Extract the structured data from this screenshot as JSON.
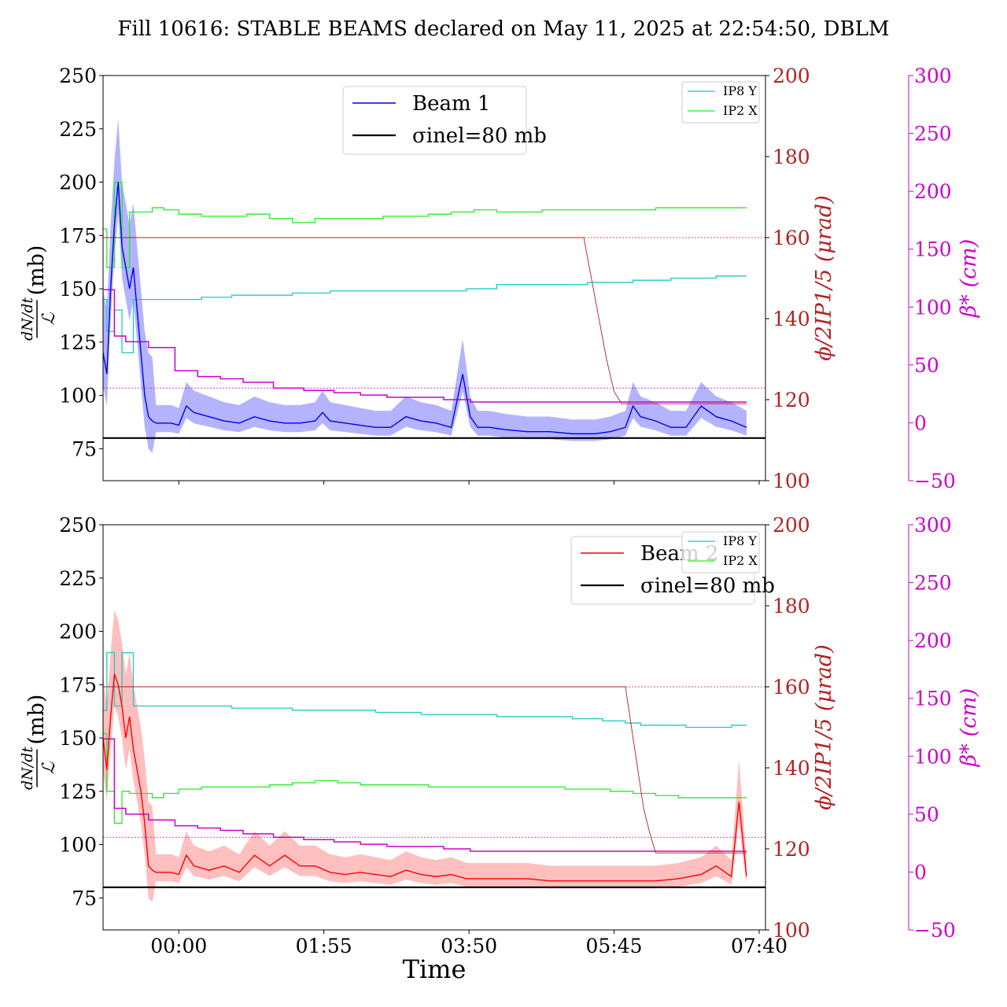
{
  "title": "Fill 10616: STABLE BEAMS declared on May 11, 2025 at 22:54:50, DBLM",
  "xlabel": "Time",
  "colors": {
    "beam1": "#0000ee",
    "beam1_band": "#9a9aff",
    "beam2": "#ff0000",
    "beam2_band": "#ffaaaa",
    "sigma": "#000000",
    "ip8y": "#1ec8c8",
    "ip2x": "#22ee22",
    "phi": "#b22222",
    "beta": "#cc00cc"
  },
  "chart_data": [
    {
      "type": "line",
      "panel": "top",
      "ylabel": "dN/dt / L (mb)",
      "ylabel_unit": "(mb)",
      "ylim": [
        60,
        250
      ],
      "yticks": [
        75,
        100,
        125,
        150,
        175,
        200,
        225,
        250
      ],
      "y2label": "ϕ/2IP1/5 (μrad)",
      "y2lim": [
        100,
        200
      ],
      "y2ticks": [
        100,
        120,
        140,
        160,
        180,
        200
      ],
      "y3label": "β* (cm)",
      "y3lim": [
        -50,
        300
      ],
      "y3ticks": [
        -50,
        0,
        50,
        100,
        150,
        200,
        250,
        300
      ],
      "xlim": [
        -1.0,
        7.75
      ],
      "xticks": [
        {
          "x": 0,
          "label": "00:00"
        },
        {
          "x": 1.9167,
          "label": "01:55"
        },
        {
          "x": 3.8333,
          "label": "03:50"
        },
        {
          "x": 5.75,
          "label": "05:45"
        },
        {
          "x": 7.6667,
          "label": "07:40"
        }
      ],
      "legend_main": [
        "Beam 1",
        "σinel=80 mb"
      ],
      "legend_small": [
        "IP8 Y",
        "IP2 X"
      ],
      "sigma_inel": 80,
      "series": [
        {
          "name": "Beam 1",
          "axis": "y",
          "x": [
            -1.07,
            -1.0,
            -0.95,
            -0.9,
            -0.85,
            -0.8,
            -0.75,
            -0.7,
            -0.65,
            -0.6,
            -0.55,
            -0.5,
            -0.45,
            -0.4,
            -0.35,
            -0.3,
            -0.25,
            -0.2,
            -0.1,
            0.0,
            0.1,
            0.2,
            0.4,
            0.6,
            0.8,
            1.0,
            1.2,
            1.4,
            1.6,
            1.8,
            1.9,
            2.0,
            2.2,
            2.4,
            2.6,
            2.8,
            3.0,
            3.2,
            3.4,
            3.6,
            3.75,
            3.85,
            3.95,
            4.1,
            4.3,
            4.6,
            4.9,
            5.2,
            5.5,
            5.7,
            5.9,
            6.0,
            6.1,
            6.3,
            6.5,
            6.7,
            6.9,
            7.1,
            7.3,
            7.5
          ],
          "values": [
            150,
            120,
            110,
            150,
            180,
            200,
            170,
            160,
            150,
            160,
            140,
            120,
            100,
            90,
            88,
            87,
            87,
            87,
            87,
            86,
            95,
            92,
            90,
            88,
            87,
            90,
            88,
            87,
            87,
            88,
            92,
            88,
            87,
            86,
            85,
            85,
            90,
            88,
            87,
            85,
            110,
            90,
            85,
            85,
            84,
            83,
            83,
            82,
            82,
            83,
            85,
            95,
            90,
            88,
            85,
            85,
            95,
            90,
            88,
            85
          ]
        },
        {
          "name": "IP8 Y",
          "axis": "y",
          "x": [
            -1.07,
            -0.95,
            -0.85,
            -0.75,
            -0.6,
            -0.4,
            -0.1,
            0.3,
            0.7,
            1.0,
            1.5,
            2.0,
            2.6,
            3.2,
            3.8,
            4.2,
            4.8,
            5.4,
            6.0,
            6.5,
            7.0,
            7.1,
            7.5
          ],
          "values": [
            145,
            130,
            140,
            120,
            145,
            145,
            145,
            146,
            147,
            147,
            148,
            149,
            149,
            149,
            150,
            152,
            152,
            153,
            154,
            155,
            155,
            156,
            156
          ]
        },
        {
          "name": "IP2 X",
          "axis": "y",
          "x": [
            -1.07,
            -0.95,
            -0.85,
            -0.75,
            -0.65,
            -0.5,
            -0.35,
            -0.2,
            0.0,
            0.3,
            0.6,
            0.9,
            1.2,
            1.5,
            1.8,
            2.1,
            2.4,
            2.7,
            3.0,
            3.3,
            3.6,
            3.9,
            4.2,
            4.5,
            4.8,
            5.1,
            5.4,
            5.7,
            6.0,
            6.3,
            6.6,
            6.9,
            7.2,
            7.5
          ],
          "values": [
            178,
            160,
            200,
            160,
            186,
            186,
            188,
            187,
            185,
            184,
            184,
            185,
            183,
            181,
            183,
            183,
            183,
            184,
            184,
            185,
            186,
            187,
            186,
            186,
            187,
            187,
            187,
            187,
            187,
            188,
            188,
            188,
            188,
            188
          ]
        },
        {
          "name": "ϕ/2",
          "axis": "y2",
          "x": [
            -1.07,
            5.35,
            5.45,
            5.55,
            5.65,
            5.75,
            5.85,
            7.5
          ],
          "values": [
            160,
            160,
            150,
            140,
            130,
            122,
            119,
            119
          ]
        },
        {
          "name": "β*",
          "axis": "y3",
          "x": [
            -1.07,
            -0.85,
            -0.7,
            -0.4,
            -0.05,
            0.25,
            0.55,
            0.85,
            1.25,
            1.65,
            2.05,
            2.4,
            2.75,
            3.15,
            3.5,
            3.85,
            4.2,
            4.6,
            5.0,
            5.5,
            6.0,
            6.5,
            7.0,
            7.5
          ],
          "values": [
            115,
            75,
            70,
            65,
            45,
            40,
            38,
            35,
            30,
            28,
            26,
            24,
            22,
            22,
            20,
            18,
            18,
            18,
            18,
            18,
            18,
            18,
            18,
            18
          ]
        }
      ]
    },
    {
      "type": "line",
      "panel": "bottom",
      "ylabel": "dN/dt / L (mb)",
      "ylabel_unit": "(mb)",
      "ylim": [
        60,
        250
      ],
      "yticks": [
        75,
        100,
        125,
        150,
        175,
        200,
        225,
        250
      ],
      "y2label": "ϕ/2IP1/5 (μrad)",
      "y2lim": [
        100,
        200
      ],
      "y2ticks": [
        100,
        120,
        140,
        160,
        180,
        200
      ],
      "y3label": "β* (cm)",
      "y3lim": [
        -50,
        300
      ],
      "y3ticks": [
        -50,
        0,
        50,
        100,
        150,
        200,
        250,
        300
      ],
      "xlim": [
        -1.0,
        7.75
      ],
      "xticks": [
        {
          "x": 0,
          "label": "00:00"
        },
        {
          "x": 1.9167,
          "label": "01:55"
        },
        {
          "x": 3.8333,
          "label": "03:50"
        },
        {
          "x": 5.75,
          "label": "05:45"
        },
        {
          "x": 7.6667,
          "label": "07:40"
        }
      ],
      "legend_main": [
        "Beam 2",
        "σinel=80 mb"
      ],
      "legend_small": [
        "IP8 Y",
        "IP2 X"
      ],
      "sigma_inel": 80,
      "series": [
        {
          "name": "Beam 2",
          "axis": "y",
          "x": [
            -1.07,
            -1.0,
            -0.95,
            -0.9,
            -0.85,
            -0.8,
            -0.75,
            -0.7,
            -0.65,
            -0.6,
            -0.55,
            -0.5,
            -0.45,
            -0.4,
            -0.35,
            -0.3,
            -0.25,
            -0.1,
            0.0,
            0.1,
            0.2,
            0.4,
            0.6,
            0.8,
            1.0,
            1.2,
            1.4,
            1.6,
            1.8,
            2.0,
            2.2,
            2.4,
            2.6,
            2.8,
            3.0,
            3.2,
            3.4,
            3.6,
            3.8,
            4.0,
            4.3,
            4.6,
            4.9,
            5.2,
            5.5,
            5.8,
            6.0,
            6.3,
            6.6,
            6.9,
            7.1,
            7.3,
            7.4,
            7.5
          ],
          "values": [
            115,
            150,
            135,
            160,
            180,
            175,
            165,
            150,
            160,
            145,
            135,
            125,
            110,
            90,
            88,
            87,
            87,
            87,
            86,
            95,
            90,
            88,
            90,
            87,
            95,
            90,
            95,
            90,
            90,
            87,
            86,
            87,
            86,
            85,
            88,
            86,
            85,
            86,
            84,
            84,
            84,
            84,
            83,
            83,
            83,
            83,
            83,
            83,
            84,
            86,
            90,
            85,
            120,
            85
          ]
        },
        {
          "name": "IP8 Y",
          "axis": "y",
          "x": [
            -1.07,
            -0.95,
            -0.85,
            -0.75,
            -0.6,
            -0.4,
            -0.1,
            0.3,
            0.7,
            1.0,
            1.5,
            2.0,
            2.6,
            3.2,
            3.8,
            4.2,
            4.8,
            5.2,
            5.6,
            5.9,
            6.1,
            6.4,
            6.7,
            7.0,
            7.3,
            7.5
          ],
          "values": [
            163,
            190,
            165,
            190,
            165,
            165,
            165,
            165,
            164,
            164,
            163,
            163,
            162,
            161,
            161,
            160,
            160,
            159,
            158,
            157,
            156,
            156,
            155,
            155,
            156,
            156
          ]
        },
        {
          "name": "IP2 X",
          "axis": "y",
          "x": [
            -1.07,
            -0.95,
            -0.85,
            -0.75,
            -0.65,
            -0.5,
            -0.35,
            -0.2,
            0.0,
            0.3,
            0.6,
            0.9,
            1.2,
            1.5,
            1.8,
            2.1,
            2.4,
            2.7,
            3.0,
            3.3,
            3.6,
            3.9,
            4.2,
            4.5,
            4.8,
            5.1,
            5.4,
            5.7,
            6.0,
            6.3,
            6.6,
            6.9,
            7.2,
            7.5
          ],
          "values": [
            152,
            125,
            110,
            125,
            124,
            124,
            122,
            124,
            126,
            127,
            127,
            127,
            128,
            129,
            130,
            129,
            128,
            128,
            128,
            127,
            127,
            127,
            127,
            127,
            127,
            126,
            126,
            125,
            124,
            123,
            122,
            122,
            122,
            122
          ]
        },
        {
          "name": "ϕ/2",
          "axis": "y2",
          "x": [
            -1.07,
            5.9,
            5.98,
            6.06,
            6.14,
            6.22,
            6.3,
            7.5
          ],
          "values": [
            160,
            160,
            150,
            140,
            130,
            124,
            119,
            119
          ]
        },
        {
          "name": "β*",
          "axis": "y3",
          "x": [
            -1.07,
            -0.85,
            -0.7,
            -0.4,
            -0.05,
            0.25,
            0.55,
            0.85,
            1.25,
            1.65,
            2.05,
            2.4,
            2.75,
            3.15,
            3.5,
            3.85,
            4.2,
            4.6,
            5.0,
            5.5,
            6.0,
            6.5,
            7.0,
            7.5
          ],
          "values": [
            115,
            55,
            50,
            45,
            40,
            38,
            36,
            33,
            30,
            28,
            26,
            24,
            22,
            22,
            20,
            18,
            18,
            18,
            18,
            18,
            18,
            18,
            18,
            18
          ]
        }
      ]
    }
  ]
}
